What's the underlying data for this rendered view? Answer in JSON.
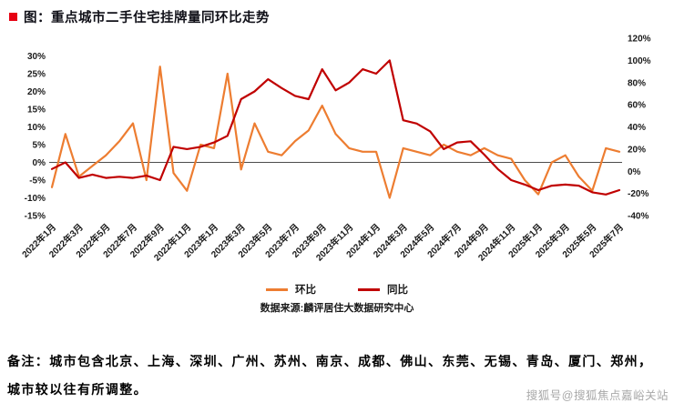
{
  "title": {
    "text": "图：重点城市二手住宅挂牌量同环比走势"
  },
  "source": "数据来源:麟评居住大数据研究中心",
  "note": {
    "line1": "备注：城市包含北京、上海、深圳、广州、苏州、南京、成都、佛山、东莞、无锡、青岛、厦门、郑州，",
    "line2": "城市较以往有所调整。"
  },
  "watermark": "搜狐号@搜狐焦点嘉峪关站",
  "chart_data": {
    "type": "line",
    "grid": false,
    "legend_position": "bottom",
    "left_axis": {
      "min": -15,
      "max": 35,
      "ticks": [
        {
          "value": 30,
          "label": "30%"
        },
        {
          "value": 25,
          "label": "25%"
        },
        {
          "value": 20,
          "label": "20%"
        },
        {
          "value": 15,
          "label": "15%"
        },
        {
          "value": 10,
          "label": "10%"
        },
        {
          "value": 5,
          "label": "5%"
        },
        {
          "value": 0,
          "label": "0%"
        },
        {
          "value": -5,
          "label": "-5%"
        },
        {
          "value": -10,
          "label": "-10%"
        },
        {
          "value": -15,
          "label": "-15%"
        }
      ]
    },
    "right_axis": {
      "min": -40,
      "max": 120,
      "ticks": [
        {
          "value": 120,
          "label": "120%"
        },
        {
          "value": 100,
          "label": "100%"
        },
        {
          "value": 80,
          "label": "80%"
        },
        {
          "value": 60,
          "label": "60%"
        },
        {
          "value": 40,
          "label": "40%"
        },
        {
          "value": 20,
          "label": "20%"
        },
        {
          "value": 0,
          "label": "0%"
        },
        {
          "value": -20,
          "label": "-20%"
        },
        {
          "value": -40,
          "label": "-40%"
        }
      ]
    },
    "x_ticks": [
      {
        "index": 0,
        "label": "2022年1月"
      },
      {
        "index": 2,
        "label": "2022年3月"
      },
      {
        "index": 4,
        "label": "2022年5月"
      },
      {
        "index": 6,
        "label": "2022年7月"
      },
      {
        "index": 8,
        "label": "2022年9月"
      },
      {
        "index": 10,
        "label": "2022年11月"
      },
      {
        "index": 12,
        "label": "2023年1月"
      },
      {
        "index": 14,
        "label": "2023年3月"
      },
      {
        "index": 16,
        "label": "2023年5月"
      },
      {
        "index": 18,
        "label": "2023年7月"
      },
      {
        "index": 20,
        "label": "2023年9月"
      },
      {
        "index": 22,
        "label": "2023年11月"
      },
      {
        "index": 24,
        "label": "2024年1月"
      },
      {
        "index": 26,
        "label": "2024年3月"
      },
      {
        "index": 28,
        "label": "2024年5月"
      },
      {
        "index": 30,
        "label": "2024年7月"
      },
      {
        "index": 32,
        "label": "2024年9月"
      },
      {
        "index": 34,
        "label": "2024年11月"
      },
      {
        "index": 36,
        "label": "2025年1月"
      },
      {
        "index": 38,
        "label": "2025年3月"
      },
      {
        "index": 40,
        "label": "2025年5月"
      },
      {
        "index": 42,
        "label": "2025年7月"
      }
    ],
    "series": [
      {
        "name": "环比",
        "axis": "left",
        "color": "#ED7D31",
        "values": [
          -7,
          8,
          -4,
          -1,
          2,
          6,
          11,
          -5,
          27,
          -3,
          -8,
          5,
          4,
          25,
          -2,
          11,
          3,
          2,
          6,
          9,
          16,
          8,
          4,
          3,
          3,
          -10,
          4,
          3,
          2,
          5,
          3,
          2,
          4,
          2,
          1,
          -5,
          -9,
          0,
          2,
          -4,
          -8,
          4,
          3
        ]
      },
      {
        "name": "同比",
        "axis": "right",
        "color": "#C00000",
        "values": [
          2,
          8,
          -6,
          -3,
          -6,
          -5,
          -6,
          -4,
          -8,
          22,
          20,
          22,
          26,
          32,
          65,
          72,
          83,
          75,
          68,
          65,
          92,
          73,
          80,
          92,
          88,
          100,
          46,
          43,
          36,
          20,
          26,
          27,
          15,
          2,
          -8,
          -12,
          -17,
          -13,
          -12,
          -13,
          -19,
          -21,
          -17
        ]
      }
    ]
  }
}
